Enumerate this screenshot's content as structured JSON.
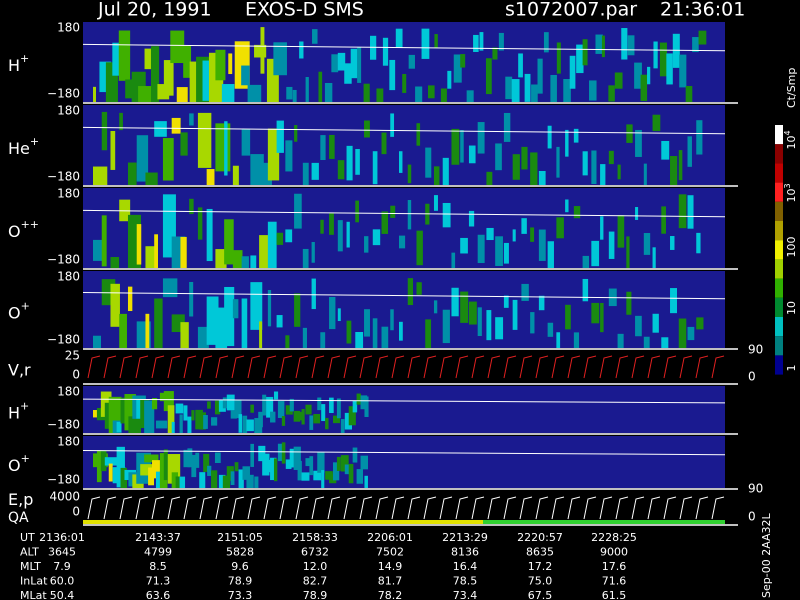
{
  "header": {
    "date": "Jul 20, 1991",
    "instrument": "EXOS-D SMS",
    "file": "s1072007.par",
    "time": "21:36:01"
  },
  "panels": [
    {
      "label": "H",
      "sup": "+",
      "ticks": [
        "180",
        "−180"
      ]
    },
    {
      "label": "He",
      "sup": "+",
      "ticks": [
        "180",
        "−180"
      ]
    },
    {
      "label": "O",
      "sup": "++",
      "ticks": [
        "180",
        "−180"
      ]
    },
    {
      "label": "O",
      "sup": "+",
      "ticks": [
        "180",
        "−180"
      ]
    },
    {
      "label": "V,r",
      "ticks": [
        "25",
        "0"
      ],
      "right_ticks": [
        "90",
        "0"
      ]
    },
    {
      "label": "H",
      "sup": "+",
      "ticks": [
        "180",
        "−180"
      ]
    },
    {
      "label": "O",
      "sup": "+",
      "ticks": [
        "180",
        "−180"
      ],
      "right_ticks": [
        "90"
      ]
    },
    {
      "label": "E,p",
      "label2": "QA",
      "ticks": [
        "4000",
        "0"
      ],
      "right_ticks": [
        "0"
      ]
    }
  ],
  "colorbar": {
    "title": "Ct/Smp",
    "labels": [
      {
        "base": "10",
        "sup": "4"
      },
      {
        "base": "10",
        "sup": "3"
      },
      {
        "base": "100"
      },
      {
        "base": "10"
      },
      {
        "base": "1"
      }
    ]
  },
  "table": {
    "rows": [
      {
        "label": "UT",
        "values": [
          "2136:01",
          "2143:37",
          "2151:05",
          "2158:33",
          "2206:01",
          "2213:29",
          "2220:57",
          "2228:25"
        ]
      },
      {
        "label": "ALT",
        "values": [
          "3645",
          "4799",
          "5828",
          "6732",
          "7502",
          "8136",
          "8635",
          "9000"
        ]
      },
      {
        "label": "MLT",
        "values": [
          "7.9",
          "8.5",
          "9.6",
          "12.0",
          "14.9",
          "16.4",
          "17.2",
          "17.6"
        ]
      },
      {
        "label": "InLat",
        "values": [
          "60.0",
          "71.3",
          "78.9",
          "82.7",
          "81.7",
          "78.5",
          "75.0",
          "71.6"
        ]
      },
      {
        "label": "MLat",
        "values": [
          "50.4",
          "63.6",
          "73.3",
          "78.9",
          "78.2",
          "73.4",
          "67.5",
          "61.5"
        ]
      }
    ]
  },
  "footer": "Sep-00 2AA32L"
}
